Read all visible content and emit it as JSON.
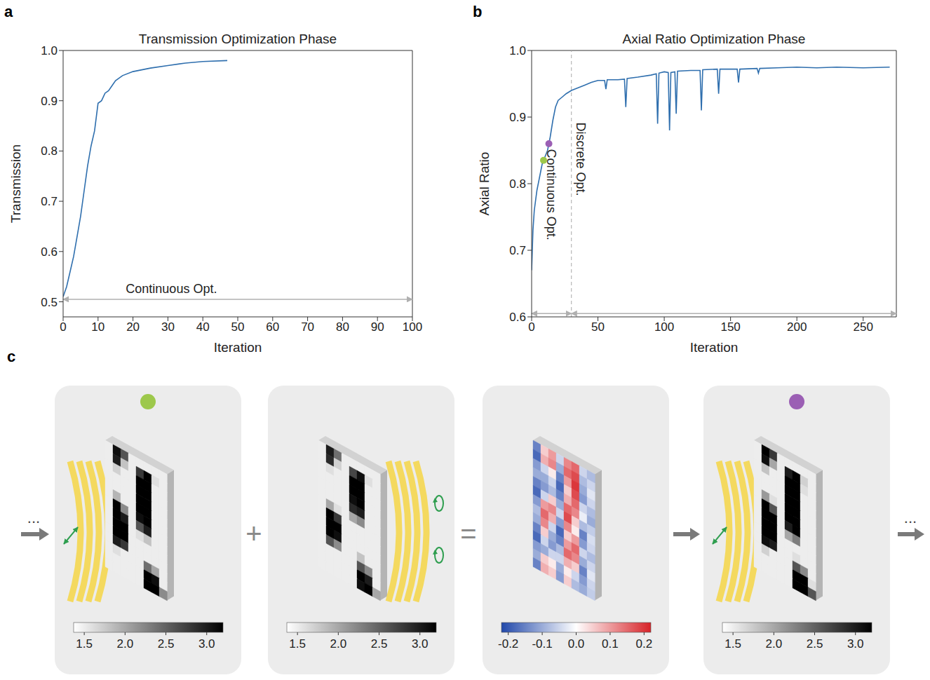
{
  "chart_data": [
    {
      "panel": "a",
      "type": "line",
      "title": "Transmission Optimization Phase",
      "x_label": "Iteration",
      "y_label": "Transmission",
      "color": "#2f6fae",
      "x": [
        0,
        1,
        2,
        3,
        4,
        5,
        6,
        7,
        8,
        9,
        10,
        11,
        12,
        13,
        14,
        15,
        17,
        20,
        25,
        30,
        35,
        40,
        47
      ],
      "values": [
        0.51,
        0.53,
        0.56,
        0.59,
        0.63,
        0.67,
        0.72,
        0.77,
        0.81,
        0.84,
        0.895,
        0.9,
        0.915,
        0.92,
        0.93,
        0.94,
        0.95,
        0.958,
        0.965,
        0.97,
        0.975,
        0.978,
        0.98
      ],
      "xlim": [
        0,
        100
      ],
      "xticks": [
        0,
        10,
        20,
        30,
        40,
        50,
        60,
        70,
        80,
        90,
        100
      ],
      "ylim": [
        0.47,
        1.0
      ],
      "yticks": [
        0.5,
        0.6,
        0.7,
        0.8,
        0.9,
        {
          "value": 1,
          "label": "1.0"
        }
      ],
      "annotations": [
        {
          "text": "Continuous Opt.",
          "span": [
            0,
            100
          ],
          "y": 0.505
        }
      ]
    },
    {
      "panel": "b",
      "type": "line",
      "title": "Axial Ratio Optimization Phase",
      "x_label": "Iteration",
      "y_label": "Axial Ratio",
      "color": "#2f6fae",
      "x": [
        0,
        1,
        2,
        4,
        6,
        8,
        10,
        12,
        14,
        16,
        18,
        20,
        23,
        26,
        30,
        35,
        40,
        45,
        50,
        55,
        56,
        57,
        65,
        70,
        71,
        72,
        80,
        90,
        94,
        95,
        96,
        100,
        103,
        104,
        105,
        108,
        109,
        110,
        120,
        127,
        128,
        129,
        140,
        141,
        142,
        150,
        155,
        156,
        157,
        170,
        171,
        172,
        185,
        200,
        215,
        230,
        250,
        270
      ],
      "values": [
        0.67,
        0.73,
        0.76,
        0.79,
        0.81,
        0.83,
        0.84,
        0.85,
        0.87,
        0.895,
        0.915,
        0.925,
        0.93,
        0.935,
        0.94,
        0.944,
        0.948,
        0.952,
        0.955,
        0.955,
        0.942,
        0.956,
        0.956,
        0.957,
        0.915,
        0.958,
        0.96,
        0.963,
        0.965,
        0.89,
        0.966,
        0.968,
        0.967,
        0.88,
        0.967,
        0.968,
        0.905,
        0.969,
        0.97,
        0.97,
        0.91,
        0.971,
        0.972,
        0.935,
        0.972,
        0.972,
        0.972,
        0.952,
        0.972,
        0.973,
        0.966,
        0.973,
        0.974,
        0.975,
        0.974,
        0.975,
        0.974,
        0.975
      ],
      "xlim": [
        0,
        275
      ],
      "xticks": [
        0,
        50,
        100,
        150,
        200,
        250
      ],
      "ylim": [
        0.6,
        1.0
      ],
      "yticks": [
        0.6,
        0.7,
        0.8,
        0.9,
        {
          "value": 1,
          "label": "1.0"
        }
      ],
      "phase_boundary": 30,
      "markers": [
        {
          "x": 9,
          "y": 0.835,
          "color": "#9dc84b"
        },
        {
          "x": 13,
          "y": 0.86,
          "color": "#9b5fb4"
        }
      ],
      "annotations": [
        {
          "text": "Continuous Opt.",
          "span": [
            0,
            30
          ],
          "y": 0.605
        },
        {
          "text": "Discrete Opt.",
          "span": [
            30,
            275
          ],
          "y": 0.605
        }
      ]
    }
  ],
  "diagram": {
    "panel": "c",
    "leading": "...",
    "trailing": "...",
    "operators": [
      "+",
      "="
    ],
    "panels": [
      {
        "marker_color": "#9dc84b",
        "colorbar": {
          "range": [
            1.37,
            3.2
          ],
          "ticks": [
            1.5,
            {
              "value": 2,
              "label": "2.0"
            },
            2.5,
            {
              "value": 3,
              "label": "3.0"
            }
          ]
        },
        "cells": [
          [
            1.5,
            3.1,
            2.6,
            1.5,
            1.5,
            1.5,
            1.5,
            1.5
          ],
          [
            1.5,
            3.0,
            1.8,
            1.5,
            2.8,
            3.2,
            1.6,
            1.5
          ],
          [
            1.5,
            1.7,
            1.5,
            1.5,
            3.2,
            3.2,
            1.5,
            1.5
          ],
          [
            1.5,
            1.5,
            1.5,
            1.5,
            3.2,
            3.2,
            1.5,
            1.5
          ],
          [
            1.5,
            1.5,
            1.5,
            1.5,
            3.2,
            3.2,
            1.5,
            1.5
          ],
          [
            1.5,
            1.9,
            1.5,
            1.5,
            3.2,
            3.2,
            1.5,
            1.5
          ],
          [
            1.5,
            3.2,
            2.2,
            1.5,
            3.1,
            3.2,
            1.5,
            1.5
          ],
          [
            1.5,
            3.2,
            3.0,
            1.5,
            2.6,
            3.0,
            1.5,
            1.5
          ],
          [
            1.5,
            3.2,
            3.2,
            1.5,
            1.6,
            1.8,
            1.5,
            1.5
          ],
          [
            1.5,
            3.2,
            3.2,
            1.5,
            1.5,
            1.5,
            1.5,
            1.5
          ],
          [
            1.5,
            3.0,
            2.8,
            1.5,
            1.5,
            1.5,
            1.5,
            1.5
          ],
          [
            1.5,
            1.6,
            1.5,
            1.5,
            1.5,
            2.4,
            2.0,
            1.5
          ],
          [
            1.5,
            1.5,
            1.5,
            1.5,
            1.5,
            3.2,
            3.1,
            1.5
          ],
          [
            1.5,
            1.5,
            1.5,
            1.5,
            1.5,
            3.2,
            3.2,
            2.2
          ]
        ]
      },
      {
        "colorbar": {
          "range": [
            1.37,
            3.2
          ],
          "ticks": [
            1.5,
            {
              "value": 2,
              "label": "2.0"
            },
            2.5,
            {
              "value": 3,
              "label": "3.0"
            }
          ]
        },
        "cells": [
          [
            1.5,
            3.0,
            2.4,
            1.5,
            1.5,
            1.5,
            1.5,
            1.5
          ],
          [
            1.5,
            2.9,
            1.7,
            1.5,
            2.7,
            3.1,
            1.6,
            1.5
          ],
          [
            1.5,
            1.6,
            1.5,
            1.5,
            3.2,
            3.2,
            1.5,
            1.5
          ],
          [
            1.5,
            1.5,
            1.5,
            1.5,
            3.2,
            3.2,
            1.5,
            1.5
          ],
          [
            1.5,
            1.5,
            1.5,
            1.5,
            3.1,
            3.2,
            1.5,
            1.5
          ],
          [
            1.5,
            1.5,
            1.5,
            1.5,
            2.9,
            3.0,
            1.5,
            1.5
          ],
          [
            1.5,
            2.0,
            1.6,
            1.5,
            2.0,
            2.2,
            1.5,
            1.5
          ],
          [
            1.5,
            3.2,
            2.8,
            1.5,
            1.5,
            1.5,
            1.5,
            1.5
          ],
          [
            1.5,
            3.2,
            3.2,
            1.5,
            1.5,
            1.5,
            1.5,
            1.5
          ],
          [
            1.5,
            3.2,
            3.1,
            1.5,
            1.5,
            1.5,
            1.5,
            1.5
          ],
          [
            1.5,
            2.6,
            2.2,
            1.5,
            1.5,
            1.8,
            1.5,
            1.5
          ],
          [
            1.5,
            1.5,
            1.5,
            1.5,
            1.5,
            2.6,
            2.2,
            1.5
          ],
          [
            1.5,
            1.5,
            1.5,
            1.5,
            1.5,
            3.2,
            3.0,
            1.5
          ],
          [
            1.5,
            1.5,
            1.5,
            1.5,
            1.5,
            3.1,
            3.2,
            2.0
          ]
        ]
      },
      {
        "colorbar": {
          "range": [
            -0.22,
            0.22
          ],
          "ticks": [
            -0.2,
            -0.1,
            {
              "value": 0,
              "label": "0.0"
            },
            0.1,
            0.2
          ]
        },
        "cells": [
          [
            -0.15,
            0.05,
            0.1,
            -0.05,
            0.12,
            0.15,
            -0.05,
            -0.08
          ],
          [
            -0.18,
            0.08,
            0.12,
            -0.1,
            0.15,
            0.18,
            -0.08,
            -0.05
          ],
          [
            -0.12,
            -0.05,
            0.02,
            -0.15,
            0.1,
            0.2,
            -0.1,
            -0.03
          ],
          [
            -0.1,
            -0.1,
            -0.05,
            -0.18,
            0.05,
            0.18,
            -0.12,
            -0.05
          ],
          [
            -0.15,
            -0.12,
            -0.08,
            -0.15,
            0.08,
            0.15,
            -0.05,
            -0.08
          ],
          [
            -0.18,
            -0.05,
            0.05,
            -0.1,
            0.15,
            0.12,
            -0.02,
            -0.1
          ],
          [
            -0.12,
            0.1,
            0.12,
            -0.05,
            0.18,
            0.05,
            -0.08,
            -0.06
          ],
          [
            -0.08,
            0.15,
            0.08,
            -0.12,
            0.12,
            0.02,
            -0.15,
            -0.04
          ],
          [
            -0.1,
            0.12,
            -0.05,
            -0.18,
            0.05,
            0.1,
            -0.12,
            -0.05
          ],
          [
            -0.15,
            0.05,
            -0.1,
            -0.15,
            0.1,
            0.15,
            -0.05,
            -0.08
          ],
          [
            -0.18,
            -0.05,
            -0.12,
            -0.08,
            0.15,
            0.12,
            -0.1,
            -0.05
          ],
          [
            -0.12,
            -0.1,
            -0.05,
            -0.05,
            0.08,
            0.05,
            -0.15,
            -0.03
          ],
          [
            -0.1,
            0.05,
            0.02,
            -0.1,
            0.02,
            -0.05,
            -0.12,
            -0.05
          ],
          [
            -0.15,
            0.08,
            0.05,
            -0.12,
            0.05,
            -0.08,
            -0.1,
            -0.06
          ]
        ]
      },
      {
        "marker_color": "#9b5fb4",
        "colorbar": {
          "range": [
            1.37,
            3.2
          ],
          "ticks": [
            1.5,
            {
              "value": 2,
              "label": "2.0"
            },
            2.5,
            {
              "value": 3,
              "label": "3.0"
            }
          ]
        },
        "cells": [
          [
            1.5,
            3.2,
            2.8,
            1.5,
            1.5,
            1.5,
            1.5,
            1.5
          ],
          [
            1.5,
            3.1,
            2.0,
            1.5,
            3.0,
            3.2,
            1.7,
            1.5
          ],
          [
            1.5,
            1.8,
            1.5,
            1.5,
            3.2,
            3.2,
            1.6,
            1.5
          ],
          [
            1.5,
            1.5,
            1.5,
            1.5,
            3.2,
            3.2,
            1.5,
            1.5
          ],
          [
            1.5,
            1.5,
            1.5,
            1.5,
            3.2,
            3.2,
            1.5,
            1.5
          ],
          [
            1.5,
            2.1,
            1.6,
            1.5,
            3.2,
            3.2,
            1.5,
            1.5
          ],
          [
            1.5,
            3.2,
            2.6,
            1.5,
            3.2,
            3.2,
            1.5,
            1.5
          ],
          [
            1.5,
            3.2,
            3.2,
            1.5,
            3.0,
            3.2,
            1.5,
            1.5
          ],
          [
            1.5,
            3.2,
            3.2,
            1.5,
            2.0,
            2.3,
            1.5,
            1.5
          ],
          [
            1.5,
            3.2,
            3.2,
            1.5,
            1.5,
            1.5,
            1.5,
            1.5
          ],
          [
            1.5,
            3.1,
            3.0,
            1.5,
            1.5,
            1.6,
            1.5,
            1.5
          ],
          [
            1.5,
            1.7,
            1.5,
            1.5,
            1.5,
            2.6,
            2.2,
            1.5
          ],
          [
            1.5,
            1.5,
            1.5,
            1.5,
            1.5,
            3.2,
            3.2,
            1.6
          ],
          [
            1.5,
            1.5,
            1.5,
            1.5,
            1.5,
            3.2,
            3.2,
            2.6
          ]
        ]
      }
    ]
  }
}
